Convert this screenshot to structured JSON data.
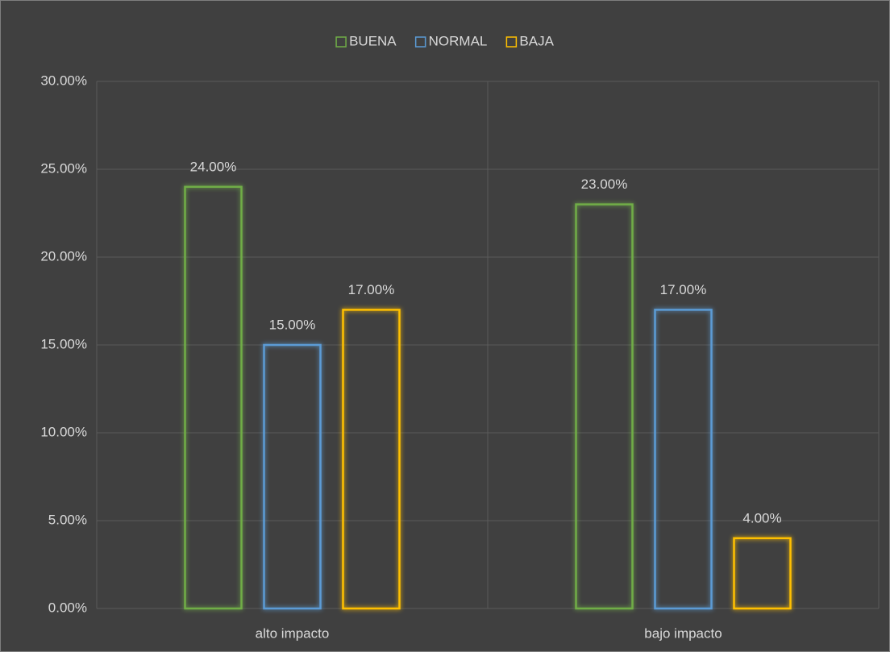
{
  "chart_data": {
    "type": "bar",
    "categories": [
      "alto impacto",
      "bajo impacto"
    ],
    "series": [
      {
        "name": "BUENA",
        "color": "#70ad47",
        "values": [
          24,
          23
        ],
        "value_labels": [
          "24.00%",
          "23.00%"
        ]
      },
      {
        "name": "NORMAL",
        "color": "#5b9bd5",
        "values": [
          15,
          17
        ],
        "value_labels": [
          "15.00%",
          "17.00%"
        ]
      },
      {
        "name": "BAJA",
        "color": "#ffc000",
        "values": [
          17,
          4
        ],
        "value_labels": [
          "17.00%",
          "4.00%"
        ]
      }
    ],
    "ylim": [
      0,
      30
    ],
    "yticks": [
      {
        "value": 0,
        "label": "0.00%"
      },
      {
        "value": 5,
        "label": "5.00%"
      },
      {
        "value": 10,
        "label": "10.00%"
      },
      {
        "value": 15,
        "label": "15.00%"
      },
      {
        "value": 20,
        "label": "20.00%"
      },
      {
        "value": 25,
        "label": "25.00%"
      },
      {
        "value": 30,
        "label": "30.00%"
      }
    ],
    "grid": true,
    "legend": "top"
  }
}
